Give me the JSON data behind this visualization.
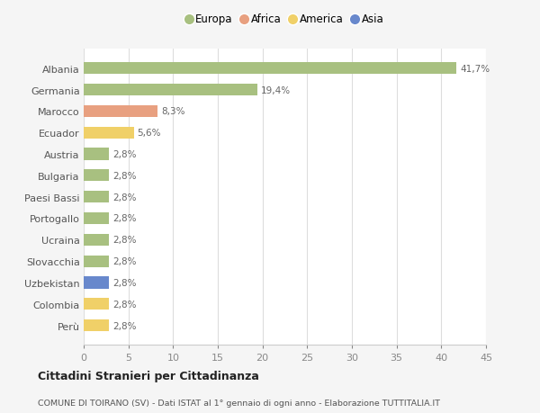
{
  "countries": [
    "Albania",
    "Germania",
    "Marocco",
    "Ecuador",
    "Austria",
    "Bulgaria",
    "Paesi Bassi",
    "Portogallo",
    "Ucraina",
    "Slovacchia",
    "Uzbekistan",
    "Colombia",
    "Perù"
  ],
  "values": [
    41.7,
    19.4,
    8.3,
    5.6,
    2.8,
    2.8,
    2.8,
    2.8,
    2.8,
    2.8,
    2.8,
    2.8,
    2.8
  ],
  "labels": [
    "41,7%",
    "19,4%",
    "8,3%",
    "5,6%",
    "2,8%",
    "2,8%",
    "2,8%",
    "2,8%",
    "2,8%",
    "2,8%",
    "2,8%",
    "2,8%",
    "2,8%"
  ],
  "colors": [
    "#a8c080",
    "#a8c080",
    "#e8a080",
    "#f0d068",
    "#a8c080",
    "#a8c080",
    "#a8c080",
    "#a8c080",
    "#a8c080",
    "#a8c080",
    "#6888cc",
    "#f0d068",
    "#f0d068"
  ],
  "legend": [
    {
      "label": "Europa",
      "color": "#a8c080"
    },
    {
      "label": "Africa",
      "color": "#e8a080"
    },
    {
      "label": "America",
      "color": "#f0d068"
    },
    {
      "label": "Asia",
      "color": "#6888cc"
    }
  ],
  "xlim": [
    0,
    45
  ],
  "xticks": [
    0,
    5,
    10,
    15,
    20,
    25,
    30,
    35,
    40,
    45
  ],
  "title": "Cittadini Stranieri per Cittadinanza",
  "subtitle": "COMUNE DI TOIRANO (SV) - Dati ISTAT al 1° gennaio di ogni anno - Elaborazione TUTTITALIA.IT",
  "background_color": "#f5f5f5",
  "plot_background": "#ffffff",
  "bar_height": 0.55
}
